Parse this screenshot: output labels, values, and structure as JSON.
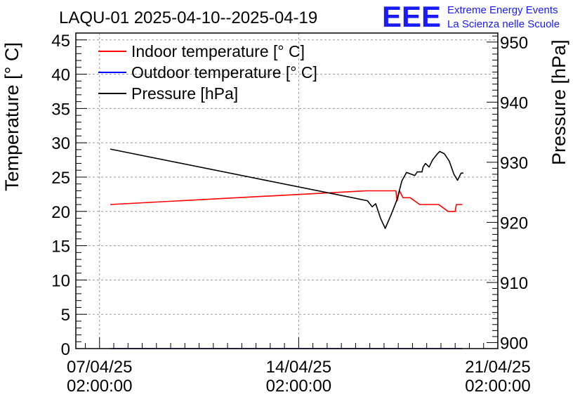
{
  "header": {
    "logo_text": "EEE",
    "logo_line1": "Extreme Energy Events",
    "logo_line2": "La Scienza nelle Scuole",
    "logo_color": "#1a1aff"
  },
  "chart_data": {
    "type": "line",
    "title": "LAQU-01 2025-04-10--2025-04-19",
    "ylabel_left": "Temperature [° C]",
    "ylabel_right": "Pressure [hPa]",
    "xlabel": "",
    "x_ticks": [
      {
        "date": "2025-04-07T02:00:00",
        "line1": "07/04/25",
        "line2": "02:00:00"
      },
      {
        "date": "2025-04-14T02:00:00",
        "line1": "14/04/25",
        "line2": "02:00:00"
      },
      {
        "date": "2025-04-21T02:00:00",
        "line1": "21/04/25",
        "line2": "02:00:00"
      }
    ],
    "xlim": [
      "2025-04-06T06:00:00",
      "2025-04-21T02:00:00"
    ],
    "ylim_left": [
      0,
      46
    ],
    "yticks_left": [
      0,
      5,
      10,
      15,
      20,
      25,
      30,
      35,
      40,
      45
    ],
    "ylim_right": [
      899,
      951.5
    ],
    "yticks_right": [
      900,
      910,
      920,
      930,
      940,
      950
    ],
    "grid": true,
    "legend_position": "top-left",
    "series": [
      {
        "name": "Indoor temperature [° C]",
        "axis": "left",
        "color": "#ff0000",
        "points": [
          [
            "2025-04-07T11:00:00",
            21.0
          ],
          [
            "2025-04-16T11:00:00",
            23.0
          ],
          [
            "2025-04-17T12:00:00",
            23.0
          ],
          [
            "2025-04-17T13:00:00",
            21.5
          ],
          [
            "2025-04-17T15:00:00",
            23.0
          ],
          [
            "2025-04-17T18:00:00",
            22.0
          ],
          [
            "2025-04-18T00:00:00",
            22.0
          ],
          [
            "2025-04-18T08:00:00",
            21.0
          ],
          [
            "2025-04-19T00:00:00",
            21.0
          ],
          [
            "2025-04-19T08:00:00",
            20.0
          ],
          [
            "2025-04-19T14:00:00",
            20.0
          ],
          [
            "2025-04-19T15:00:00",
            21.0
          ],
          [
            "2025-04-19T20:00:00",
            21.0
          ]
        ]
      },
      {
        "name": "Outdoor temperature [° C]",
        "axis": "left",
        "color": "#0000ff",
        "points": [
          [
            "2025-04-07T11:00:00",
            0.0
          ],
          [
            "2025-04-19T20:00:00",
            0.0
          ]
        ]
      },
      {
        "name": "Pressure [hPa]",
        "axis": "right",
        "color": "#000000",
        "points": [
          [
            "2025-04-07T11:00:00",
            932.2
          ],
          [
            "2025-04-16T12:00:00",
            923.6
          ],
          [
            "2025-04-16T16:00:00",
            922.6
          ],
          [
            "2025-04-16T19:00:00",
            923.1
          ],
          [
            "2025-04-16T23:00:00",
            920.7
          ],
          [
            "2025-04-17T03:00:00",
            919.0
          ],
          [
            "2025-04-17T08:00:00",
            921.3
          ],
          [
            "2025-04-17T13:00:00",
            923.8
          ],
          [
            "2025-04-17T17:00:00",
            926.9
          ],
          [
            "2025-04-17T21:00:00",
            928.3
          ],
          [
            "2025-04-18T04:00:00",
            927.8
          ],
          [
            "2025-04-18T06:00:00",
            928.4
          ],
          [
            "2025-04-18T10:00:00",
            928.4
          ],
          [
            "2025-04-18T11:00:00",
            929.2
          ],
          [
            "2025-04-18T13:00:00",
            929.8
          ],
          [
            "2025-04-18T16:00:00",
            929.2
          ],
          [
            "2025-04-18T19:00:00",
            930.4
          ],
          [
            "2025-04-18T23:00:00",
            931.4
          ],
          [
            "2025-04-19T01:00:00",
            931.8
          ],
          [
            "2025-04-19T05:00:00",
            931.4
          ],
          [
            "2025-04-19T09:00:00",
            930.2
          ],
          [
            "2025-04-19T13:00:00",
            928.0
          ],
          [
            "2025-04-19T16:00:00",
            927.0
          ],
          [
            "2025-04-19T19:00:00",
            928.2
          ],
          [
            "2025-04-19T21:00:00",
            928.2
          ]
        ]
      }
    ]
  }
}
